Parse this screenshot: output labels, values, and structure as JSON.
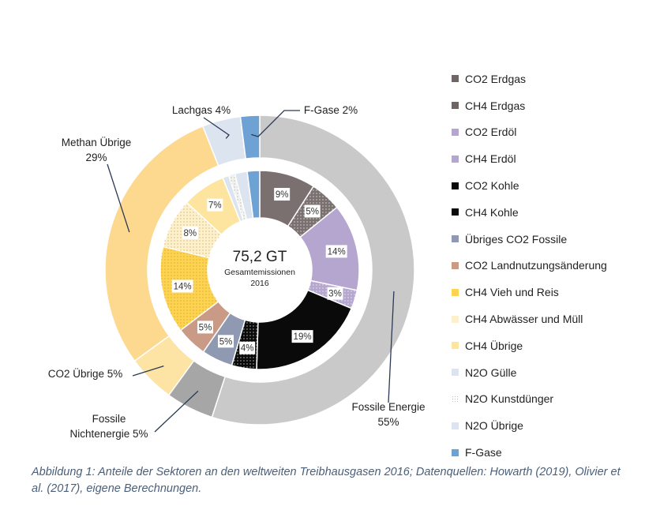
{
  "chart_data": {
    "type": "donut",
    "center": {
      "total": "75,2 GT",
      "label": "Gesamtemissionen",
      "year": "2016"
    },
    "outer_ring": [
      {
        "name": "Fossile Energie",
        "value": 55,
        "label": "Fossile Energie\n55%",
        "color": "#c9c9c9"
      },
      {
        "name": "Fossile Nichtenergie",
        "value": 5,
        "label": "Fossile\nNichtenergie  5%",
        "color": "#a6a6a6"
      },
      {
        "name": "CO2 Übrige",
        "value": 5,
        "label": "CO2 Übrige 5%",
        "color": "#fde4a5"
      },
      {
        "name": "Methan Übrige",
        "value": 29,
        "label": "Methan Übrige\n29%",
        "color": "#fdd88f"
      },
      {
        "name": "Lachgas",
        "value": 4,
        "label": "Lachgas 4%",
        "color": "#dce4f0"
      },
      {
        "name": "F-Gase",
        "value": 2,
        "label": "F-Gase 2%",
        "color": "#6ea2d4"
      }
    ],
    "inner_ring": [
      {
        "name": "CO2 Erdgas",
        "value": 9,
        "label": "9%",
        "color": "#7a7070",
        "pattern": "solid"
      },
      {
        "name": "CH4 Erdgas",
        "value": 5,
        "label": "5%",
        "color": "#7a7070",
        "pattern": "dots"
      },
      {
        "name": "CO2 Erdöl",
        "value": 14,
        "label": "14%",
        "color": "#b4a6cf",
        "pattern": "solid"
      },
      {
        "name": "CH4 Erdöl",
        "value": 3,
        "label": "3%",
        "color": "#b4a6cf",
        "pattern": "dots"
      },
      {
        "name": "CO2 Kohle",
        "value": 19,
        "label": "19%",
        "color": "#0a0a0a",
        "pattern": "solid"
      },
      {
        "name": "CH4 Kohle",
        "value": 4,
        "label": "4%",
        "color": "#0a0a0a",
        "pattern": "dots"
      },
      {
        "name": "Übriges CO2 Fossile",
        "value": 5,
        "label": "5%",
        "color": "#8f9ab2",
        "pattern": "solid"
      },
      {
        "name": "CO2 Landnutzungsänderung",
        "value": 5,
        "label": "5%",
        "color": "#c99a86",
        "pattern": "solid"
      },
      {
        "name": "CH4 Vieh und Reis",
        "value": 14,
        "label": "14%",
        "color": "#fdd34f",
        "pattern": "dots"
      },
      {
        "name": "CH4 Abwässer und Müll",
        "value": 8,
        "label": "8%",
        "color": "#fdf0cc",
        "pattern": "dots"
      },
      {
        "name": "CH4 Übrige",
        "value": 7,
        "label": "7%",
        "color": "#fde5a0",
        "pattern": "solid"
      },
      {
        "name": "N2O Gülle",
        "value": 1,
        "label": "",
        "color": "#dce4f0",
        "pattern": "solid"
      },
      {
        "name": "N2O Kunstdünger",
        "value": 1,
        "label": "",
        "color": "#eef1f6",
        "pattern": "dots"
      },
      {
        "name": "N2O Übrige",
        "value": 2,
        "label": "",
        "color": "#dce4f0",
        "pattern": "solid"
      },
      {
        "name": "F-Gase",
        "value": 2,
        "label": "",
        "color": "#6ea2d4",
        "pattern": "solid"
      }
    ],
    "legend": [
      {
        "label": "CO2 Erdgas",
        "color": "#6f6565"
      },
      {
        "label": "CH4 Erdgas",
        "color": "#6f6565"
      },
      {
        "label": "CO2 Erdöl",
        "color": "#b4a6cf"
      },
      {
        "label": "CH4 Erdöl",
        "color": "#b4a6cf"
      },
      {
        "label": "CO2 Kohle",
        "color": "#0a0a0a"
      },
      {
        "label": "CH4 Kohle",
        "color": "#0a0a0a"
      },
      {
        "label": "Übriges CO2 Fossile",
        "color": "#8f9ab2"
      },
      {
        "label": "CO2 Landnutzungsänderung",
        "color": "#c99a86"
      },
      {
        "label": "CH4 Vieh und Reis",
        "color": "#fdd34f"
      },
      {
        "label": "CH4 Abwässer und Müll",
        "color": "#fdf0cc"
      },
      {
        "label": "CH4 Übrige",
        "color": "#fde5a0"
      },
      {
        "label": "N2O Gülle",
        "color": "#dce4f0"
      },
      {
        "label": "N2O Kunstdünger",
        "color": "#eef1f6"
      },
      {
        "label": "N2O Übrige",
        "color": "#dce4f0"
      },
      {
        "label": "F-Gase",
        "color": "#6ea2d4"
      }
    ],
    "legend_position": "right"
  },
  "caption": "Abbildung 1: Anteile der Sektoren an den weltweiten Treibhausgasen 2016; Datenquellen: Howarth (2019), Olivier et al. (2017), eigene Berechnungen."
}
